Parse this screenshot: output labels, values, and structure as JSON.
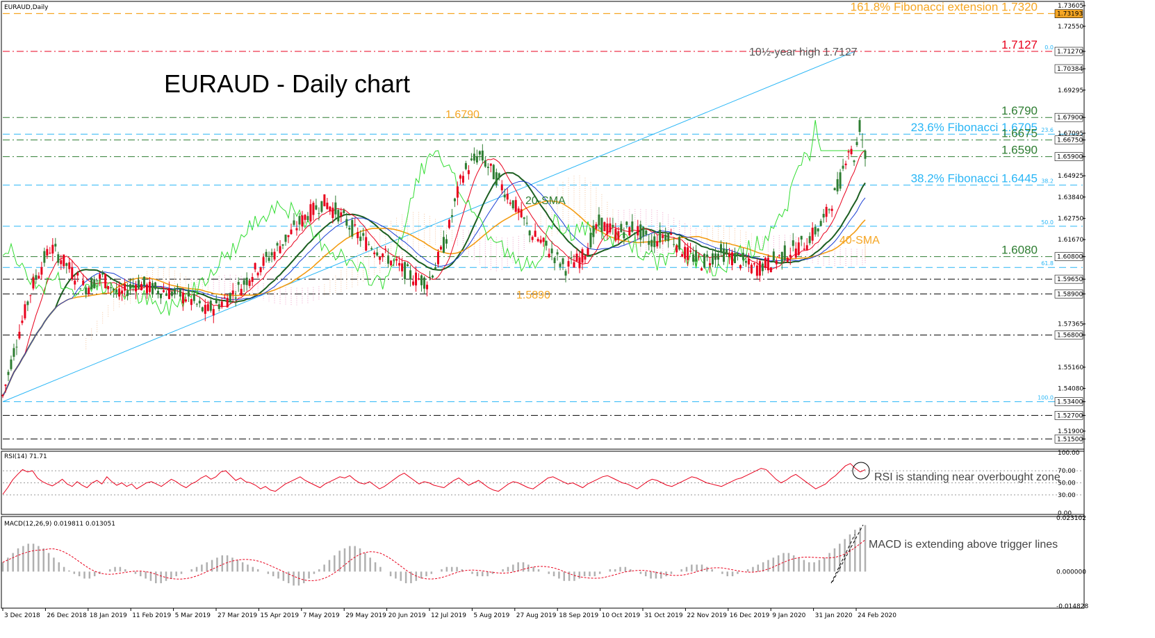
{
  "chart_data": {
    "type": "line",
    "symbol_label": "EURAUD,Daily",
    "title": "EURAUD - Daily chart",
    "price_axis": {
      "range": [
        1.5105,
        1.7375
      ],
      "ticks": [
        "1.73605",
        "1.72550",
        "1.71270",
        "1.70384",
        "1.69295",
        "1.67900",
        "1.67095",
        "1.66750",
        "1.65900",
        "1.64925",
        "1.63840",
        "1.62750",
        "1.61670",
        "1.60800",
        "1.59650",
        "1.58900",
        "1.57365",
        "1.56800",
        "1.55160",
        "1.54080",
        "1.53400",
        "1.52700",
        "1.51900",
        "1.51500"
      ]
    },
    "highlight_tags": [
      {
        "value": "1.73193",
        "color": "#f5a623"
      },
      {
        "value": "1.71270",
        "color": "#ffffff"
      },
      {
        "value": "1.70384",
        "color": "#ffffff"
      },
      {
        "value": "1.67900",
        "color": "#ffffff"
      },
      {
        "value": "1.66750",
        "color": "#ffffff"
      },
      {
        "value": "1.65900",
        "color": "#ffffff"
      },
      {
        "value": "1.60800",
        "color": "#ffffff"
      },
      {
        "value": "1.59650",
        "color": "#ffffff"
      },
      {
        "value": "1.58900",
        "color": "#ffffff"
      },
      {
        "value": "1.56800",
        "color": "#ffffff"
      },
      {
        "value": "1.53400",
        "color": "#ffffff"
      },
      {
        "value": "1.52700",
        "color": "#ffffff"
      },
      {
        "value": "1.51500",
        "color": "#ffffff"
      }
    ],
    "date_labels": [
      "3 Dec 2018",
      "26 Dec 2018",
      "18 Jan 2019",
      "11 Feb 2019",
      "5 Mar 2019",
      "27 Mar 2019",
      "15 Apr 2019",
      "7 May 2019",
      "29 May 2019",
      "20 Jun 2019",
      "12 Jul 2019",
      "5 Aug 2019",
      "27 Aug 2019",
      "18 Sep 2019",
      "10 Oct 2019",
      "31 Oct 2019",
      "22 Nov 2019",
      "16 Dec 2019",
      "9 Jan 2020",
      "31 Jan 2020",
      "24 Feb 2020"
    ],
    "horizontal_levels": [
      {
        "label": "161.8% Fibonacci extension 1.7320",
        "value": 1.732,
        "color": "#f5a623",
        "style": "dashed"
      },
      {
        "label": "1.7127",
        "value": 1.7127,
        "color": "#e8001c",
        "style": "dashdot"
      },
      {
        "label": "1.6790",
        "value": 1.679,
        "color": "#2e7d32",
        "style": "dashdot"
      },
      {
        "label": "23.6% Fibonacci 1.6705",
        "value": 1.6705,
        "color": "#29b6f6",
        "style": "dashed"
      },
      {
        "label": "1.6675",
        "value": 1.6675,
        "color": "#2e7d32",
        "style": "dashdot"
      },
      {
        "label": "1.6590",
        "value": 1.659,
        "color": "#2e7d32",
        "style": "dashdot"
      },
      {
        "label": "38.2% Fibonacci 1.6445",
        "value": 1.6445,
        "color": "#29b6f6",
        "style": "dashed"
      },
      {
        "label": "",
        "value": 1.6235,
        "color": "#29b6f6",
        "style": "dashed"
      },
      {
        "label": "1.6080",
        "value": 1.608,
        "color": "#2e7d32",
        "style": "dashdot"
      },
      {
        "label": "",
        "value": 1.6025,
        "color": "#29b6f6",
        "style": "dashed"
      },
      {
        "label": "",
        "value": 1.5965,
        "color": "#000000",
        "style": "dashdot"
      },
      {
        "label": "",
        "value": 1.589,
        "color": "#000000",
        "style": "dashdot"
      },
      {
        "label": "",
        "value": 1.568,
        "color": "#000000",
        "style": "dashdot"
      },
      {
        "label": "",
        "value": 1.534,
        "color": "#29b6f6",
        "style": "dashed"
      },
      {
        "label": "",
        "value": 1.527,
        "color": "#000000",
        "style": "dashdot"
      },
      {
        "label": "",
        "value": 1.515,
        "color": "#000000",
        "style": "dashdot"
      }
    ],
    "fib_small_labels": [
      "0.0",
      "23.6",
      "38.2",
      "50.0",
      "61.8",
      "100.0"
    ],
    "annotations": {
      "year_high": "10½-year high 1.7127",
      "peak_1": "1.6790",
      "low_1": "1.5890",
      "sma20": "20-SMA",
      "sma40": "40-SMA"
    },
    "price_path": [
      {
        "x": 0,
        "y": 1.537
      },
      {
        "x": 8,
        "y": 1.565
      },
      {
        "x": 18,
        "y": 1.595
      },
      {
        "x": 28,
        "y": 1.613
      },
      {
        "x": 38,
        "y": 1.603
      },
      {
        "x": 48,
        "y": 1.592
      },
      {
        "x": 58,
        "y": 1.598
      },
      {
        "x": 68,
        "y": 1.588
      },
      {
        "x": 78,
        "y": 1.595
      },
      {
        "x": 88,
        "y": 1.591
      },
      {
        "x": 98,
        "y": 1.59
      },
      {
        "x": 108,
        "y": 1.587
      },
      {
        "x": 118,
        "y": 1.58
      },
      {
        "x": 128,
        "y": 1.585
      },
      {
        "x": 138,
        "y": 1.592
      },
      {
        "x": 148,
        "y": 1.602
      },
      {
        "x": 158,
        "y": 1.61
      },
      {
        "x": 168,
        "y": 1.62
      },
      {
        "x": 178,
        "y": 1.63
      },
      {
        "x": 188,
        "y": 1.636
      },
      {
        "x": 198,
        "y": 1.628
      },
      {
        "x": 208,
        "y": 1.618
      },
      {
        "x": 218,
        "y": 1.612
      },
      {
        "x": 228,
        "y": 1.605
      },
      {
        "x": 238,
        "y": 1.598
      },
      {
        "x": 248,
        "y": 1.595
      },
      {
        "x": 258,
        "y": 1.615
      },
      {
        "x": 268,
        "y": 1.65
      },
      {
        "x": 278,
        "y": 1.66
      },
      {
        "x": 288,
        "y": 1.648
      },
      {
        "x": 298,
        "y": 1.635
      },
      {
        "x": 308,
        "y": 1.62
      },
      {
        "x": 318,
        "y": 1.612
      },
      {
        "x": 328,
        "y": 1.602
      },
      {
        "x": 338,
        "y": 1.608
      },
      {
        "x": 348,
        "y": 1.625
      },
      {
        "x": 358,
        "y": 1.62
      },
      {
        "x": 368,
        "y": 1.623
      },
      {
        "x": 378,
        "y": 1.615
      },
      {
        "x": 388,
        "y": 1.62
      },
      {
        "x": 398,
        "y": 1.61
      },
      {
        "x": 408,
        "y": 1.605
      },
      {
        "x": 418,
        "y": 1.61
      },
      {
        "x": 428,
        "y": 1.607
      },
      {
        "x": 438,
        "y": 1.602
      },
      {
        "x": 448,
        "y": 1.605
      },
      {
        "x": 458,
        "y": 1.61
      },
      {
        "x": 468,
        "y": 1.615
      },
      {
        "x": 478,
        "y": 1.625
      },
      {
        "x": 488,
        "y": 1.645
      },
      {
        "x": 493,
        "y": 1.664
      },
      {
        "x": 497,
        "y": 1.658
      },
      {
        "x": 500,
        "y": 1.676
      },
      {
        "x": 503,
        "y": 1.659
      }
    ],
    "rsi": {
      "label": "RSI(14) 71.71",
      "range": [
        0,
        100
      ],
      "ticks": [
        "100.00",
        "70.00",
        "50.00",
        "30.00",
        "0.00"
      ],
      "levels": [
        70,
        50,
        30
      ],
      "note": "RSI is standing near overbought zone",
      "values": [
        31,
        42,
        55,
        64,
        72,
        68,
        70,
        58,
        52,
        48,
        45,
        50,
        56,
        48,
        44,
        52,
        46,
        42,
        50,
        54,
        48,
        60,
        52,
        46,
        50,
        44,
        48,
        40,
        45,
        50,
        52,
        48,
        44,
        50,
        56,
        52,
        46,
        42,
        48,
        52,
        58,
        62,
        56,
        60,
        68,
        70,
        62,
        54,
        58,
        52,
        50,
        46,
        40,
        44,
        38,
        36,
        42,
        48,
        52,
        56,
        60,
        54,
        50,
        46,
        42,
        48,
        52,
        56,
        60,
        58,
        62,
        55,
        50,
        48,
        52,
        46,
        40,
        44,
        50,
        56,
        62,
        66,
        60,
        54,
        48,
        52,
        50,
        46,
        44,
        42,
        48,
        54,
        58,
        52,
        46,
        50,
        54,
        48,
        42,
        38,
        36,
        42,
        48,
        52,
        50,
        46,
        42,
        40,
        46,
        52,
        58,
        60,
        56,
        52,
        48,
        50,
        46,
        42,
        48,
        52,
        56,
        60,
        62,
        58,
        54,
        50,
        48,
        44,
        40,
        46,
        52,
        56,
        54,
        50,
        46,
        44,
        48,
        52,
        56,
        60,
        58,
        54,
        50,
        48,
        46,
        44,
        48,
        52,
        56,
        58,
        62,
        66,
        70,
        74,
        72,
        64,
        56,
        50,
        54,
        60,
        64,
        58,
        52,
        46,
        40,
        44,
        48,
        56,
        62,
        70,
        78,
        82,
        74,
        68,
        72
      ]
    },
    "macd": {
      "label": "MACD(12,26,9) 0.019811 0.013051",
      "range": [
        -0.014828,
        0.023102
      ],
      "ticks": [
        "0.023102",
        "0.000000",
        "-0.014828"
      ],
      "note": "MACD is extending above trigger lines",
      "hist": [
        0.004,
        0.006,
        0.008,
        0.01,
        0.011,
        0.012,
        0.012,
        0.011,
        0.01,
        0.008,
        0.006,
        0.004,
        0.002,
        0.0005,
        -0.001,
        -0.002,
        -0.003,
        -0.003,
        -0.002,
        -0.001,
        0.0,
        0.001,
        0.002,
        0.002,
        0.001,
        0.0,
        -0.001,
        -0.002,
        -0.003,
        -0.004,
        -0.005,
        -0.005,
        -0.004,
        -0.003,
        -0.002,
        -0.001,
        0.0,
        0.001,
        0.002,
        0.003,
        0.004,
        0.005,
        0.006,
        0.007,
        0.007,
        0.006,
        0.005,
        0.004,
        0.003,
        0.002,
        0.001,
        0.0,
        -0.001,
        -0.002,
        -0.003,
        -0.004,
        -0.005,
        -0.006,
        -0.006,
        -0.005,
        -0.003,
        -0.001,
        0.001,
        0.003,
        0.005,
        0.007,
        0.009,
        0.01,
        0.011,
        0.011,
        0.01,
        0.008,
        0.006,
        0.004,
        0.002,
        0.0,
        -0.002,
        -0.003,
        -0.004,
        -0.005,
        -0.005,
        -0.004,
        -0.003,
        -0.002,
        -0.001,
        0.0,
        0.001,
        0.002,
        0.002,
        0.002,
        0.001,
        0.0,
        -0.001,
        -0.002,
        -0.002,
        -0.002,
        -0.001,
        0.0,
        0.001,
        0.002,
        0.003,
        0.004,
        0.004,
        0.003,
        0.002,
        0.001,
        0.0,
        -0.001,
        -0.002,
        -0.003,
        -0.004,
        -0.004,
        -0.004,
        -0.003,
        -0.002,
        -0.002,
        -0.002,
        -0.001,
        0.0,
        0.001,
        0.001,
        0.002,
        0.002,
        0.001,
        0.0,
        -0.001,
        -0.002,
        -0.003,
        -0.003,
        -0.003,
        -0.002,
        -0.001,
        0.0,
        0.001,
        0.002,
        0.003,
        0.003,
        0.003,
        0.002,
        0.001,
        0.0,
        -0.001,
        -0.002,
        -0.002,
        -0.001,
        0.0,
        0.001,
        0.002,
        0.003,
        0.004,
        0.005,
        0.006,
        0.007,
        0.008,
        0.008,
        0.007,
        0.006,
        0.005,
        0.004,
        0.004,
        0.005,
        0.006,
        0.008,
        0.01,
        0.012,
        0.014,
        0.016,
        0.018,
        0.019,
        0.02
      ]
    }
  }
}
